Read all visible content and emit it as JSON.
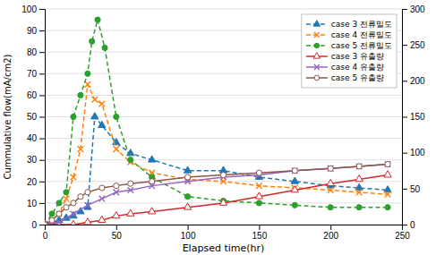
{
  "chart_data": {
    "type": "line",
    "xlabel": "Elapsed time(hr)",
    "ylabel": "Cummulative flow(mA/cm2)",
    "xlim": [
      0,
      250
    ],
    "ylim": [
      0,
      100
    ],
    "y2lim": [
      0,
      300
    ],
    "xticks": [
      0,
      50,
      100,
      150,
      200,
      250
    ],
    "yticks": [
      0,
      10,
      20,
      30,
      40,
      50,
      60,
      70,
      80,
      90,
      100
    ],
    "y2ticks": [
      0,
      50,
      100,
      150,
      200,
      250,
      300
    ],
    "grid": true,
    "legend": "top-right",
    "series": [
      {
        "name": "case 3 전류밀도",
        "marker": "triangle",
        "line_style": "dashed",
        "x": [
          0,
          5,
          10,
          15,
          20,
          25,
          30,
          35,
          40,
          50,
          60,
          75,
          100,
          125,
          150,
          175,
          200,
          220,
          240
        ],
        "values": [
          0,
          1,
          2,
          3,
          4,
          6,
          8,
          50,
          46,
          38,
          33,
          30,
          25,
          25,
          22,
          20,
          18,
          17,
          16
        ]
      },
      {
        "name": "case 4 전류밀도",
        "marker": "x",
        "line_style": "dashed",
        "x": [
          0,
          5,
          10,
          15,
          20,
          25,
          30,
          35,
          40,
          50,
          60,
          75,
          100,
          125,
          150,
          175,
          200,
          220,
          240
        ],
        "values": [
          0,
          2,
          5,
          12,
          22,
          35,
          65,
          58,
          56,
          35,
          29,
          24,
          21,
          20,
          18,
          17,
          16,
          15,
          14
        ]
      },
      {
        "name": "case 5 전류밀도",
        "marker": "circle",
        "line_style": "dashed",
        "x": [
          0,
          5,
          10,
          15,
          20,
          25,
          30,
          33,
          37,
          42,
          50,
          60,
          75,
          100,
          125,
          150,
          175,
          200,
          220,
          240
        ],
        "values": [
          0,
          5,
          10,
          15,
          50,
          60,
          70,
          85,
          95,
          82,
          50,
          30,
          22,
          13,
          11,
          10,
          9,
          8,
          8,
          8
        ]
      },
      {
        "name": "case 3 유출량",
        "marker": "triangle-open",
        "line_style": "solid",
        "x": [
          0,
          10,
          20,
          30,
          40,
          50,
          60,
          75,
          100,
          125,
          150,
          175,
          200,
          220,
          240
        ],
        "values": [
          0,
          0,
          0,
          1,
          2,
          4,
          5,
          6,
          8,
          10,
          13,
          16,
          19,
          21,
          23
        ]
      },
      {
        "name": "case 4 유출량",
        "marker": "x",
        "line_style": "solid",
        "x": [
          0,
          10,
          20,
          30,
          40,
          50,
          60,
          75,
          100,
          125,
          150,
          175,
          200,
          220,
          240
        ],
        "values": [
          0,
          1,
          5,
          9,
          12,
          15,
          16,
          18,
          20,
          22,
          23,
          25,
          26,
          27,
          28
        ]
      },
      {
        "name": "case 5 유출량",
        "marker": "circle-open",
        "line_style": "solid",
        "x": [
          0,
          5,
          10,
          15,
          20,
          25,
          30,
          40,
          50,
          60,
          75,
          100,
          125,
          150,
          175,
          200,
          220,
          240
        ],
        "values": [
          0,
          2,
          5,
          8,
          10,
          13,
          15,
          17,
          18,
          19,
          20,
          22,
          23,
          24,
          25,
          26,
          27,
          28
        ]
      }
    ]
  }
}
